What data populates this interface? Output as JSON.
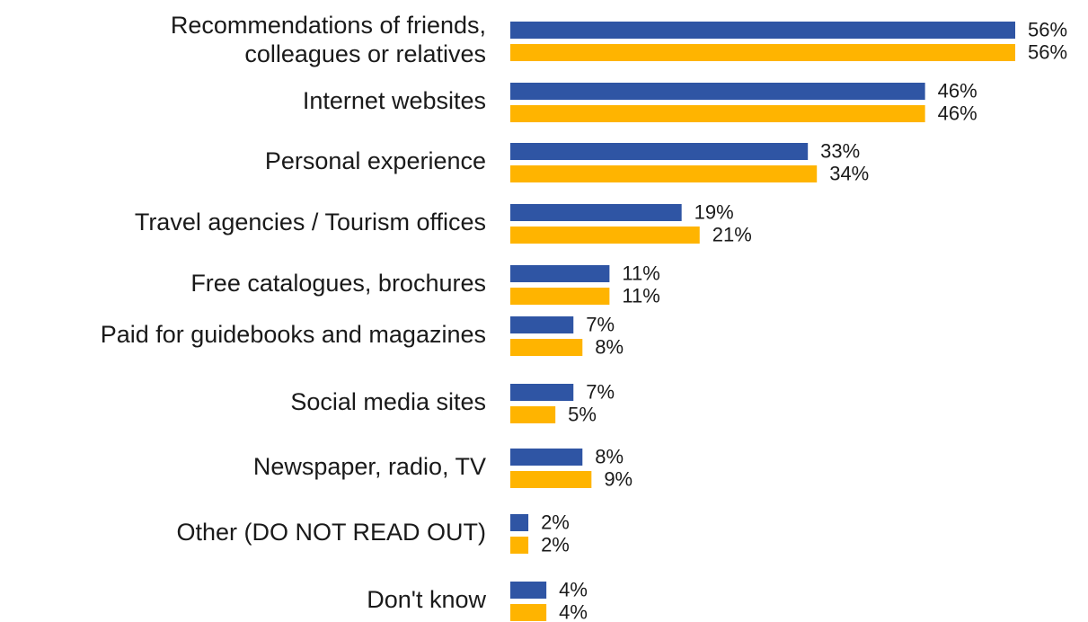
{
  "chart_data": {
    "type": "bar",
    "orientation": "horizontal",
    "categories": [
      [
        "Recommendations of friends,",
        "colleagues or relatives"
      ],
      [
        "Internet websites"
      ],
      [
        "Personal experience"
      ],
      [
        "Travel agencies / Tourism offices"
      ],
      [
        "Free catalogues, brochures"
      ],
      [
        "Paid for guidebooks and magazines"
      ],
      [
        "Social media sites"
      ],
      [
        "Newspaper, radio, TV"
      ],
      [
        "Other (DO NOT READ OUT)"
      ],
      [
        "Don't know"
      ]
    ],
    "series": [
      {
        "color": "#2f55a4",
        "values": [
          56,
          46,
          33,
          19,
          11,
          7,
          7,
          8,
          2,
          4
        ]
      },
      {
        "color": "#ffb400",
        "values": [
          56,
          46,
          34,
          21,
          11,
          8,
          5,
          9,
          2,
          4
        ]
      }
    ],
    "value_suffix": "%",
    "xlim": [
      0,
      56
    ],
    "grid": false,
    "legend": "none",
    "title": "",
    "xlabel": "",
    "ylabel": ""
  }
}
